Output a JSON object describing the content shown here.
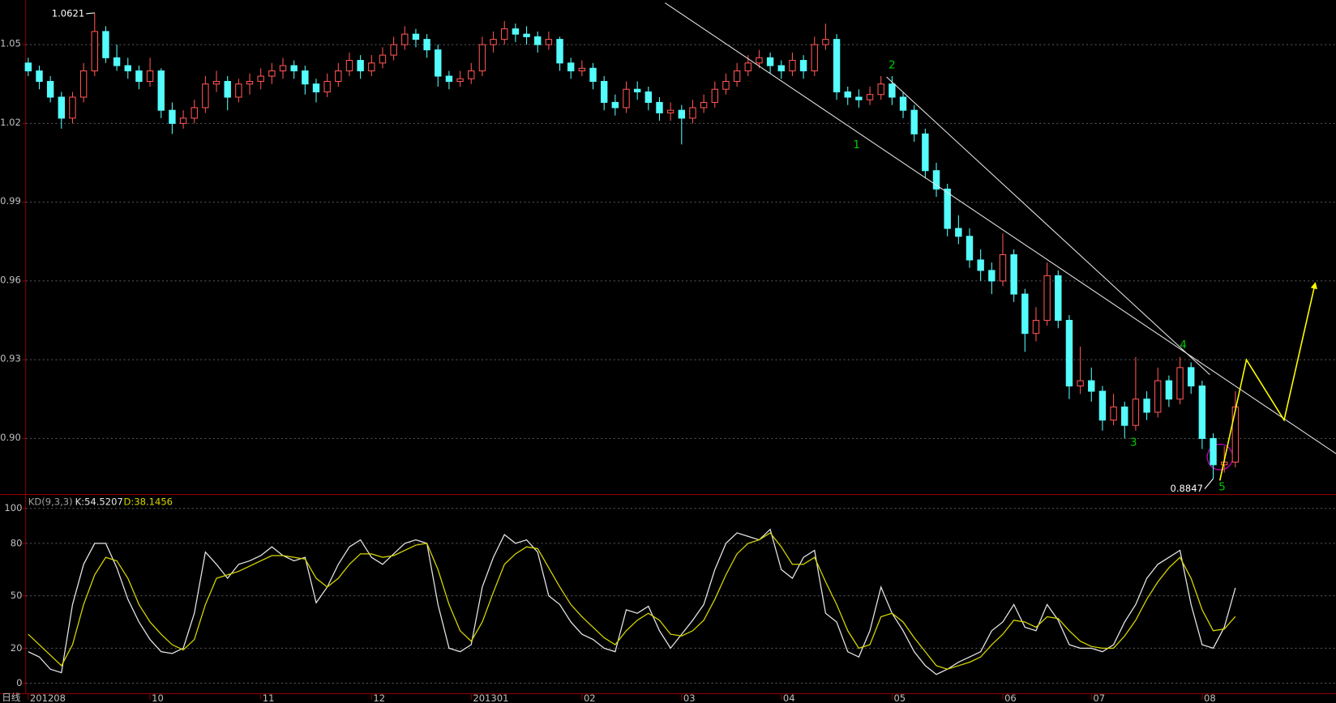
{
  "chart_data": [
    {
      "type": "candlestick",
      "categories": [
        "201208",
        null,
        null,
        null,
        null,
        null,
        null,
        null,
        null,
        null,
        null,
        "10",
        null,
        null,
        null,
        null,
        null,
        null,
        null,
        null,
        null,
        "11",
        null,
        null,
        null,
        null,
        null,
        null,
        null,
        null,
        null,
        "12",
        null,
        null,
        null,
        null,
        null,
        null,
        null,
        null,
        "201301",
        null,
        null,
        null,
        null,
        null,
        null,
        null,
        null,
        null,
        "02",
        null,
        null,
        null,
        null,
        null,
        null,
        null,
        null,
        "03",
        null,
        null,
        null,
        null,
        null,
        null,
        null,
        null,
        "04",
        null,
        null,
        null,
        null,
        null,
        null,
        null,
        null,
        null,
        "05",
        null,
        null,
        null,
        null,
        null,
        null,
        null,
        null,
        null,
        "06",
        null,
        null,
        null,
        null,
        null,
        null,
        null,
        "07",
        null,
        null,
        null,
        null,
        null,
        null,
        null,
        null,
        null,
        "08",
        null,
        null,
        null
      ],
      "ohlc": [
        [
          1.043,
          1.045,
          1.038,
          1.04
        ],
        [
          1.04,
          1.042,
          1.033,
          1.036
        ],
        [
          1.036,
          1.038,
          1.028,
          1.03
        ],
        [
          1.03,
          1.032,
          1.018,
          1.022
        ],
        [
          1.022,
          1.032,
          1.02,
          1.03
        ],
        [
          1.03,
          1.043,
          1.028,
          1.04
        ],
        [
          1.04,
          1.0621,
          1.038,
          1.055
        ],
        [
          1.055,
          1.057,
          1.043,
          1.045
        ],
        [
          1.045,
          1.05,
          1.04,
          1.042
        ],
        [
          1.042,
          1.045,
          1.037,
          1.04
        ],
        [
          1.04,
          1.042,
          1.033,
          1.036
        ],
        [
          1.036,
          1.045,
          1.034,
          1.04
        ],
        [
          1.04,
          1.041,
          1.022,
          1.025
        ],
        [
          1.025,
          1.028,
          1.016,
          1.02
        ],
        [
          1.02,
          1.025,
          1.018,
          1.022
        ],
        [
          1.022,
          1.029,
          1.02,
          1.026
        ],
        [
          1.026,
          1.038,
          1.024,
          1.035
        ],
        [
          1.035,
          1.04,
          1.032,
          1.036
        ],
        [
          1.036,
          1.038,
          1.025,
          1.03
        ],
        [
          1.03,
          1.037,
          1.028,
          1.035
        ],
        [
          1.035,
          1.039,
          1.031,
          1.036
        ],
        [
          1.036,
          1.041,
          1.033,
          1.038
        ],
        [
          1.038,
          1.043,
          1.035,
          1.04
        ],
        [
          1.04,
          1.045,
          1.037,
          1.042
        ],
        [
          1.042,
          1.044,
          1.037,
          1.04
        ],
        [
          1.04,
          1.042,
          1.031,
          1.035
        ],
        [
          1.035,
          1.037,
          1.028,
          1.032
        ],
        [
          1.032,
          1.039,
          1.03,
          1.036
        ],
        [
          1.036,
          1.043,
          1.034,
          1.04
        ],
        [
          1.04,
          1.047,
          1.038,
          1.044
        ],
        [
          1.044,
          1.046,
          1.037,
          1.04
        ],
        [
          1.04,
          1.046,
          1.038,
          1.043
        ],
        [
          1.043,
          1.049,
          1.041,
          1.046
        ],
        [
          1.046,
          1.053,
          1.044,
          1.05
        ],
        [
          1.05,
          1.057,
          1.048,
          1.054
        ],
        [
          1.054,
          1.056,
          1.049,
          1.052
        ],
        [
          1.052,
          1.054,
          1.045,
          1.048
        ],
        [
          1.048,
          1.05,
          1.034,
          1.038
        ],
        [
          1.038,
          1.04,
          1.033,
          1.036
        ],
        [
          1.036,
          1.04,
          1.034,
          1.037
        ],
        [
          1.037,
          1.043,
          1.035,
          1.04
        ],
        [
          1.04,
          1.053,
          1.038,
          1.05
        ],
        [
          1.05,
          1.055,
          1.047,
          1.052
        ],
        [
          1.052,
          1.059,
          1.05,
          1.056
        ],
        [
          1.056,
          1.058,
          1.051,
          1.054
        ],
        [
          1.054,
          1.057,
          1.05,
          1.053
        ],
        [
          1.053,
          1.055,
          1.047,
          1.05
        ],
        [
          1.05,
          1.055,
          1.048,
          1.052
        ],
        [
          1.052,
          1.053,
          1.04,
          1.043
        ],
        [
          1.043,
          1.045,
          1.037,
          1.04
        ],
        [
          1.04,
          1.044,
          1.038,
          1.041
        ],
        [
          1.041,
          1.043,
          1.033,
          1.036
        ],
        [
          1.036,
          1.038,
          1.025,
          1.028
        ],
        [
          1.028,
          1.031,
          1.023,
          1.026
        ],
        [
          1.026,
          1.036,
          1.024,
          1.033
        ],
        [
          1.033,
          1.036,
          1.029,
          1.032
        ],
        [
          1.032,
          1.034,
          1.025,
          1.028
        ],
        [
          1.028,
          1.03,
          1.021,
          1.024
        ],
        [
          1.024,
          1.028,
          1.021,
          1.025
        ],
        [
          1.025,
          1.027,
          1.012,
          1.022
        ],
        [
          1.022,
          1.029,
          1.02,
          1.026
        ],
        [
          1.026,
          1.031,
          1.024,
          1.028
        ],
        [
          1.028,
          1.036,
          1.026,
          1.033
        ],
        [
          1.033,
          1.039,
          1.031,
          1.036
        ],
        [
          1.036,
          1.043,
          1.034,
          1.04
        ],
        [
          1.04,
          1.046,
          1.038,
          1.043
        ],
        [
          1.043,
          1.048,
          1.041,
          1.045
        ],
        [
          1.045,
          1.047,
          1.039,
          1.042
        ],
        [
          1.042,
          1.044,
          1.037,
          1.04
        ],
        [
          1.04,
          1.047,
          1.038,
          1.044
        ],
        [
          1.044,
          1.046,
          1.037,
          1.04
        ],
        [
          1.04,
          1.053,
          1.038,
          1.05
        ],
        [
          1.05,
          1.058,
          1.048,
          1.052
        ],
        [
          1.052,
          1.054,
          1.029,
          1.032
        ],
        [
          1.032,
          1.034,
          1.027,
          1.03
        ],
        [
          1.03,
          1.033,
          1.026,
          1.029
        ],
        [
          1.029,
          1.034,
          1.027,
          1.031
        ],
        [
          1.031,
          1.038,
          1.029,
          1.035
        ],
        [
          1.035,
          1.038,
          1.027,
          1.03
        ],
        [
          1.03,
          1.032,
          1.022,
          1.025
        ],
        [
          1.025,
          1.027,
          1.013,
          1.016
        ],
        [
          1.016,
          1.018,
          0.999,
          1.002
        ],
        [
          1.002,
          1.005,
          0.992,
          0.995
        ],
        [
          0.995,
          0.997,
          0.977,
          0.98
        ],
        [
          0.98,
          0.985,
          0.974,
          0.977
        ],
        [
          0.977,
          0.98,
          0.965,
          0.968
        ],
        [
          0.968,
          0.972,
          0.96,
          0.964
        ],
        [
          0.964,
          0.967,
          0.955,
          0.96
        ],
        [
          0.96,
          0.978,
          0.958,
          0.97
        ],
        [
          0.97,
          0.972,
          0.952,
          0.955
        ],
        [
          0.955,
          0.957,
          0.933,
          0.94
        ],
        [
          0.94,
          0.95,
          0.937,
          0.945
        ],
        [
          0.945,
          0.967,
          0.943,
          0.962
        ],
        [
          0.962,
          0.964,
          0.942,
          0.945
        ],
        [
          0.945,
          0.947,
          0.915,
          0.92
        ],
        [
          0.92,
          0.935,
          0.917,
          0.922
        ],
        [
          0.922,
          0.927,
          0.914,
          0.918
        ],
        [
          0.918,
          0.92,
          0.903,
          0.907
        ],
        [
          0.907,
          0.917,
          0.905,
          0.912
        ],
        [
          0.912,
          0.914,
          0.9,
          0.905
        ],
        [
          0.905,
          0.931,
          0.903,
          0.915
        ],
        [
          0.915,
          0.918,
          0.907,
          0.91
        ],
        [
          0.91,
          0.927,
          0.908,
          0.922
        ],
        [
          0.922,
          0.924,
          0.912,
          0.915
        ],
        [
          0.915,
          0.931,
          0.913,
          0.927
        ],
        [
          0.927,
          0.929,
          0.917,
          0.92
        ],
        [
          0.92,
          0.922,
          0.896,
          0.9
        ],
        [
          0.9,
          0.902,
          0.8847,
          0.89
        ],
        [
          0.89,
          0.897,
          0.887,
          0.891
        ],
        [
          0.891,
          0.918,
          0.889,
          0.912
        ]
      ],
      "up_color": "#ff5454",
      "down_color": "#54fcfc",
      "ylim": [
        0.879,
        1.067
      ],
      "yticks": [
        {
          "value": 0.9,
          "label": "0.90"
        },
        0.93,
        0.96,
        0.99,
        1.02,
        1.05
      ],
      "grid": true,
      "annotations": [
        {
          "text": "1.0621",
          "x": 6,
          "y": 1.0621,
          "color": "#ffffff"
        },
        {
          "text": "0.8847",
          "x": 107,
          "y": 0.8847,
          "color": "#ffffff"
        },
        {
          "text": "1",
          "x": 74.8,
          "y": 1.0118,
          "color": "#00c800"
        },
        {
          "text": "2",
          "x": 78,
          "y": 1.0422,
          "color": "#00c800"
        },
        {
          "text": "3",
          "x": 99.8,
          "y": 0.8985,
          "color": "#00c800"
        },
        {
          "text": "4",
          "x": 104.3,
          "y": 0.9356,
          "color": "#00c800"
        },
        {
          "text": "5",
          "x": 107.8,
          "y": 0.8815,
          "color": "#00c800"
        }
      ],
      "trendlines": [
        {
          "x": [
            57.5,
            118.1
          ],
          "y": [
            1.0659,
            0.8942
          ],
          "color": "#e8e8e8"
        },
        {
          "x": [
            77.5,
            106.7
          ],
          "y": [
            1.0377,
            0.9243
          ],
          "color": "#e8e8e8"
        }
      ],
      "projection": {
        "x": [
          107.6,
          110,
          113.4,
          116.2
        ],
        "y": [
          0.884,
          0.93,
          0.907,
          0.959
        ],
        "color": "#ffff00"
      }
    },
    {
      "type": "line",
      "title": "KD(9,3,3)",
      "period_label": "日线",
      "ylim": [
        -6,
        107
      ],
      "yticks": [
        0,
        20,
        50,
        80,
        100
      ],
      "grid": true,
      "series": [
        {
          "name": "K:54.5207",
          "color": "#e6e6e6",
          "values": [
            18,
            15,
            8,
            6,
            45,
            68,
            80,
            80,
            66,
            48,
            35,
            25,
            18,
            17,
            20,
            40,
            75,
            68,
            60,
            68,
            70,
            73,
            78,
            73,
            70,
            72,
            46,
            55,
            68,
            78,
            82,
            72,
            68,
            74,
            80,
            82,
            80,
            45,
            20,
            18,
            22,
            55,
            72,
            85,
            80,
            82,
            75,
            50,
            45,
            35,
            28,
            25,
            20,
            18,
            42,
            40,
            44,
            30,
            20,
            28,
            36,
            45,
            65,
            80,
            86,
            84,
            82,
            88,
            65,
            60,
            72,
            76,
            40,
            35,
            18,
            15,
            30,
            55,
            40,
            30,
            18,
            10,
            5,
            8,
            12,
            15,
            18,
            30,
            35,
            45,
            32,
            30,
            45,
            36,
            22,
            20,
            20,
            18,
            22,
            35,
            45,
            60,
            68,
            72,
            76,
            45,
            22,
            20,
            32,
            54.5207
          ]
        },
        {
          "name": "D:38.1456",
          "color": "#d8d800",
          "values": [
            28,
            22,
            16,
            10,
            22,
            45,
            62,
            72,
            70,
            60,
            45,
            35,
            28,
            22,
            19,
            25,
            45,
            60,
            62,
            64,
            67,
            70,
            73,
            73,
            72,
            71,
            60,
            55,
            60,
            68,
            74,
            74,
            72,
            73,
            76,
            79,
            80,
            65,
            45,
            30,
            24,
            35,
            52,
            68,
            74,
            78,
            77,
            66,
            55,
            45,
            38,
            32,
            26,
            22,
            30,
            36,
            40,
            36,
            28,
            27,
            30,
            36,
            48,
            62,
            74,
            80,
            82,
            86,
            78,
            68,
            68,
            72,
            58,
            45,
            30,
            20,
            22,
            38,
            40,
            35,
            26,
            18,
            10,
            8,
            10,
            12,
            15,
            22,
            28,
            36,
            35,
            32,
            38,
            37,
            30,
            24,
            21,
            20,
            20,
            27,
            36,
            48,
            58,
            66,
            72,
            60,
            42,
            30,
            31,
            38.1456
          ]
        }
      ]
    }
  ]
}
